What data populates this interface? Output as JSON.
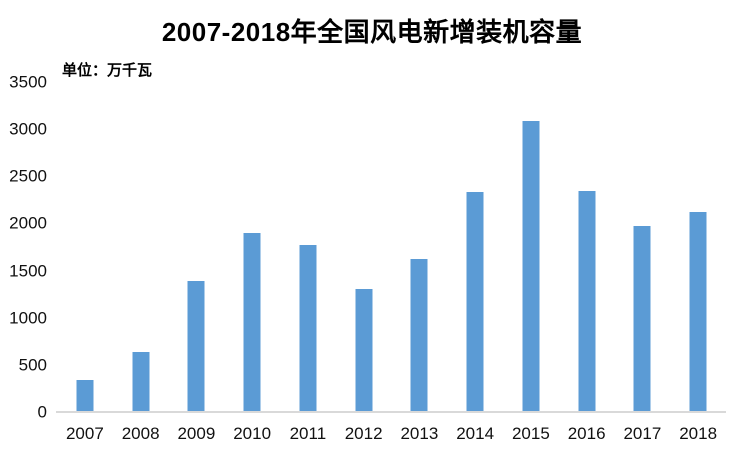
{
  "chart_data": {
    "type": "bar",
    "title": "2007-2018年全国风电新增装机容量",
    "unit_label": "单位：万千瓦",
    "ylabel": "单位：万千瓦",
    "xlabel": "",
    "categories": [
      "2007",
      "2008",
      "2009",
      "2010",
      "2011",
      "2012",
      "2013",
      "2014",
      "2015",
      "2016",
      "2017",
      "2018"
    ],
    "values": [
      330,
      625,
      1380,
      1893,
      1763,
      1296,
      1610,
      2320,
      3075,
      2337,
      1966,
      2114
    ],
    "ylim": [
      0,
      3500
    ],
    "yticks": [
      0,
      500,
      1000,
      1500,
      2000,
      2500,
      3000,
      3500
    ],
    "grid": false,
    "legend": null
  },
  "colors": {
    "bar": "#5B9BD5",
    "axis_line": "#D9D9D9",
    "text": "#000000"
  }
}
